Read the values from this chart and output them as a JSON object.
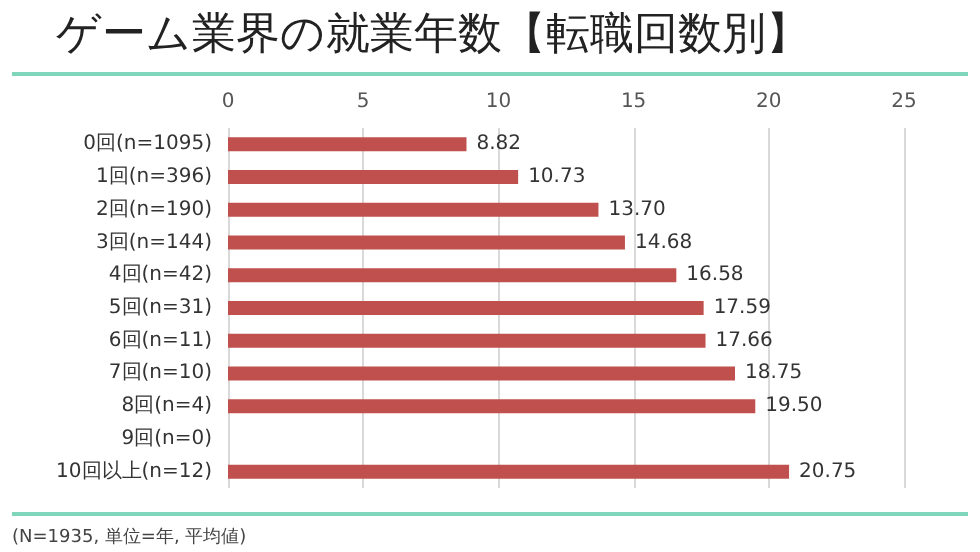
{
  "chart_data": {
    "type": "bar",
    "orientation": "horizontal",
    "title": "ゲーム業界の就業年数【転職回数別】",
    "categories": [
      "0回(n=1095)",
      "1回(n=396)",
      "2回(n=190)",
      "3回(n=144)",
      "4回(n=42)",
      "5回(n=31)",
      "6回(n=11)",
      "7回(n=10)",
      "8回(n=4)",
      "9回(n=0)",
      "10回以上(n=12)"
    ],
    "values": [
      8.82,
      10.73,
      13.7,
      14.68,
      16.58,
      17.59,
      17.66,
      18.75,
      19.5,
      null,
      20.75
    ],
    "value_labels": [
      "8.82",
      "10.73",
      "13.70",
      "14.68",
      "16.58",
      "17.59",
      "17.66",
      "18.75",
      "19.50",
      null,
      "20.75"
    ],
    "color": "#c0504d",
    "xlim": [
      0,
      25
    ],
    "xticks": [
      0,
      5,
      10,
      15,
      20,
      25
    ],
    "grid": "x",
    "annotations": [
      "(N=1935, 単位=年, 平均値)"
    ]
  }
}
